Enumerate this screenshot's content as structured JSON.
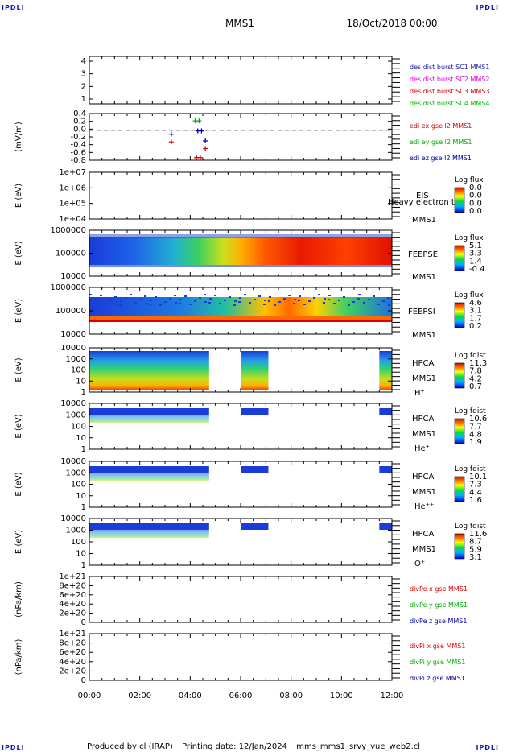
{
  "corners": {
    "tl": "IPDLI",
    "tr": "IPDLI",
    "bl": "IPDLI",
    "br": "IPDLI"
  },
  "header": {
    "title": "MMS1",
    "date": "18/Oct/2018 00:00"
  },
  "footer": {
    "credit": "Produced by cl (IRAP)",
    "printing": "Printing date: 12/Jan/2024",
    "file": "mms_mms1_srvy_vue_web2.cl"
  },
  "chart_data": {
    "type": "heatmap",
    "xaxis": {
      "ticks": [
        "00:00",
        "02:00",
        "04:00",
        "06:00",
        "08:00",
        "10:00",
        "12:00"
      ]
    },
    "colors": {
      "c1": "#1a1ab0",
      "c2": "#dd00dd",
      "c3": "#dd0000",
      "c4": "#00bb00",
      "x": "#dd0000",
      "y": "#00aa00",
      "z": "#0000aa"
    },
    "panels": [
      {
        "id": "p1",
        "ylabel": "",
        "yticks": [
          "4",
          "3",
          "2",
          "1"
        ],
        "legend": [
          "des dist burst SC1 MMS1",
          "des dist burst SC2 MMS2",
          "des dist burst SC3 MMS3",
          "des dist burst SC4 MMS4"
        ]
      },
      {
        "id": "p2",
        "ylabel": "(mV/m)",
        "yticks": [
          "0.4",
          "0.2",
          "0.0",
          "-0.2",
          "-0.4",
          "-0.6",
          "-0.8"
        ],
        "legend": [
          "edi ex gse l2 MMS1",
          "edi ey gse l2 MMS1",
          "edi ez gse l2 MMS1"
        ],
        "points": [
          {
            "t": 3.25,
            "v": -0.35,
            "c": "x"
          },
          {
            "t": 3.25,
            "v": -0.12,
            "c": "z"
          },
          {
            "t": 4.2,
            "v": 0.28,
            "c": "y"
          },
          {
            "t": 4.35,
            "v": 0.28,
            "c": "y"
          },
          {
            "t": 4.3,
            "v": -0.02,
            "c": "z"
          },
          {
            "t": 4.45,
            "v": -0.02,
            "c": "z"
          },
          {
            "t": 4.25,
            "v": -0.82,
            "c": "x"
          },
          {
            "t": 4.4,
            "v": -0.82,
            "c": "x"
          },
          {
            "t": 4.6,
            "v": -0.32,
            "c": "z"
          },
          {
            "t": 4.6,
            "v": -0.55,
            "c": "x"
          }
        ]
      },
      {
        "id": "p3",
        "ylabel": "E (eV)",
        "yticks": [
          "1e+07",
          "1e+06",
          "1e+05",
          "1e+04"
        ],
        "right": [
          "EIS",
          "Heavy electron to",
          "MMS1"
        ],
        "cbar": {
          "title": "Log flux",
          "ticks": [
            "0.0",
            "0.0",
            "0.0",
            "0.0"
          ]
        }
      },
      {
        "id": "p4",
        "ylabel": "E (eV)",
        "yticks": [
          "1000000",
          "100000",
          "10000"
        ],
        "right": [
          "FEEPSE",
          "MMS1"
        ],
        "cbar": {
          "title": "Log flux",
          "ticks": [
            "5.1",
            "3.3",
            "1.4",
            "-0.4"
          ]
        }
      },
      {
        "id": "p5",
        "ylabel": "E (eV)",
        "yticks": [
          "1000000",
          "100000",
          "10000"
        ],
        "right": [
          "FEEPSI",
          "MMS1"
        ],
        "cbar": {
          "title": "Log flux",
          "ticks": [
            "4.6",
            "3.1",
            "1.7",
            "0.2"
          ]
        }
      },
      {
        "id": "p6",
        "ylabel": "E (eV)",
        "yticks": [
          "10000",
          "1000",
          "100",
          "10",
          "1"
        ],
        "right": [
          "HPCA",
          "MMS1",
          "H⁺"
        ],
        "cbar": {
          "title": "Log fdist",
          "ticks": [
            "11.3",
            "7.8",
            "4.2",
            "0.7"
          ]
        }
      },
      {
        "id": "p7",
        "ylabel": "E (eV)",
        "yticks": [
          "10000",
          "1000",
          "100",
          "10",
          "1"
        ],
        "right": [
          "HPCA",
          "MMS1",
          "He⁺"
        ],
        "cbar": {
          "title": "Log fdist",
          "ticks": [
            "10.6",
            "7.7",
            "4.8",
            "1.9"
          ]
        }
      },
      {
        "id": "p8",
        "ylabel": "E (eV)",
        "yticks": [
          "10000",
          "1000",
          "100",
          "10",
          "1"
        ],
        "right": [
          "HPCA",
          "MMS1",
          "He⁺⁺"
        ],
        "cbar": {
          "title": "Log fdist",
          "ticks": [
            "10.1",
            "7.3",
            "4.4",
            "1.6"
          ]
        }
      },
      {
        "id": "p9",
        "ylabel": "E (eV)",
        "yticks": [
          "10000",
          "1000",
          "100",
          "10",
          "1"
        ],
        "right": [
          "HPCA",
          "MMS1",
          "O⁺"
        ],
        "cbar": {
          "title": "Log fdist",
          "ticks": [
            "11.6",
            "8.7",
            "5.9",
            "3.1"
          ]
        }
      },
      {
        "id": "p10",
        "ylabel": "(nPa/km)",
        "yticks": [
          "1e+21",
          "8e+20",
          "6e+20",
          "4e+20",
          "2e+20",
          "0"
        ],
        "legend": [
          "divPe x gse MMS1",
          "divPe y gse MMS1",
          "divPe z gse MMS1"
        ]
      },
      {
        "id": "p11",
        "ylabel": "(nPa/km)",
        "yticks": [
          "1e+21",
          "8e+20",
          "6e+20",
          "4e+20",
          "2e+20",
          "0"
        ],
        "legend": [
          "divPi x gse MMS1",
          "divPi y gse MMS1",
          "divPi z gse MMS1"
        ]
      }
    ],
    "coverage": {
      "hpca_segments": [
        [
          0,
          4.75
        ],
        [
          6.0,
          7.1
        ],
        [
          11.5,
          12
        ]
      ]
    }
  }
}
